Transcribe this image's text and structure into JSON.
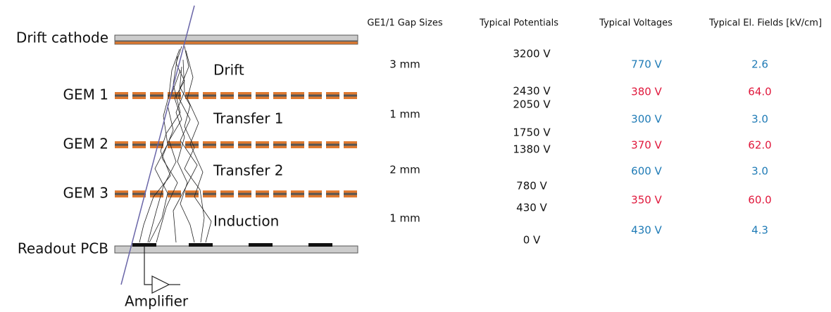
{
  "layers": [
    {
      "label": "Drift cathode"
    },
    {
      "label": "GEM 1"
    },
    {
      "label": "GEM 2"
    },
    {
      "label": "GEM 3"
    },
    {
      "label": "Readout PCB"
    }
  ],
  "regions": [
    {
      "label": "Drift"
    },
    {
      "label": "Transfer 1"
    },
    {
      "label": "Transfer 2"
    },
    {
      "label": "Induction"
    }
  ],
  "amplifier": "Amplifier",
  "table": {
    "headers": [
      "GE1/1 Gap Sizes",
      "Typical Potentials",
      "Typical Voltages",
      "Typical El. Fields [kV/cm]"
    ],
    "gap_sizes": [
      "3 mm",
      "1 mm",
      "2 mm",
      "1 mm"
    ],
    "potentials": [
      "3200 V",
      "2430 V",
      "2050 V",
      "1750 V",
      "1380 V",
      "780 V",
      "430 V",
      "0 V"
    ],
    "voltages": [
      "770 V",
      "380 V",
      "300 V",
      "370 V",
      "600 V",
      "350 V",
      "430 V"
    ],
    "fields": [
      "2.6",
      "64.0",
      "3.0",
      "62.0",
      "3.0",
      "60.0",
      "4.3"
    ]
  }
}
